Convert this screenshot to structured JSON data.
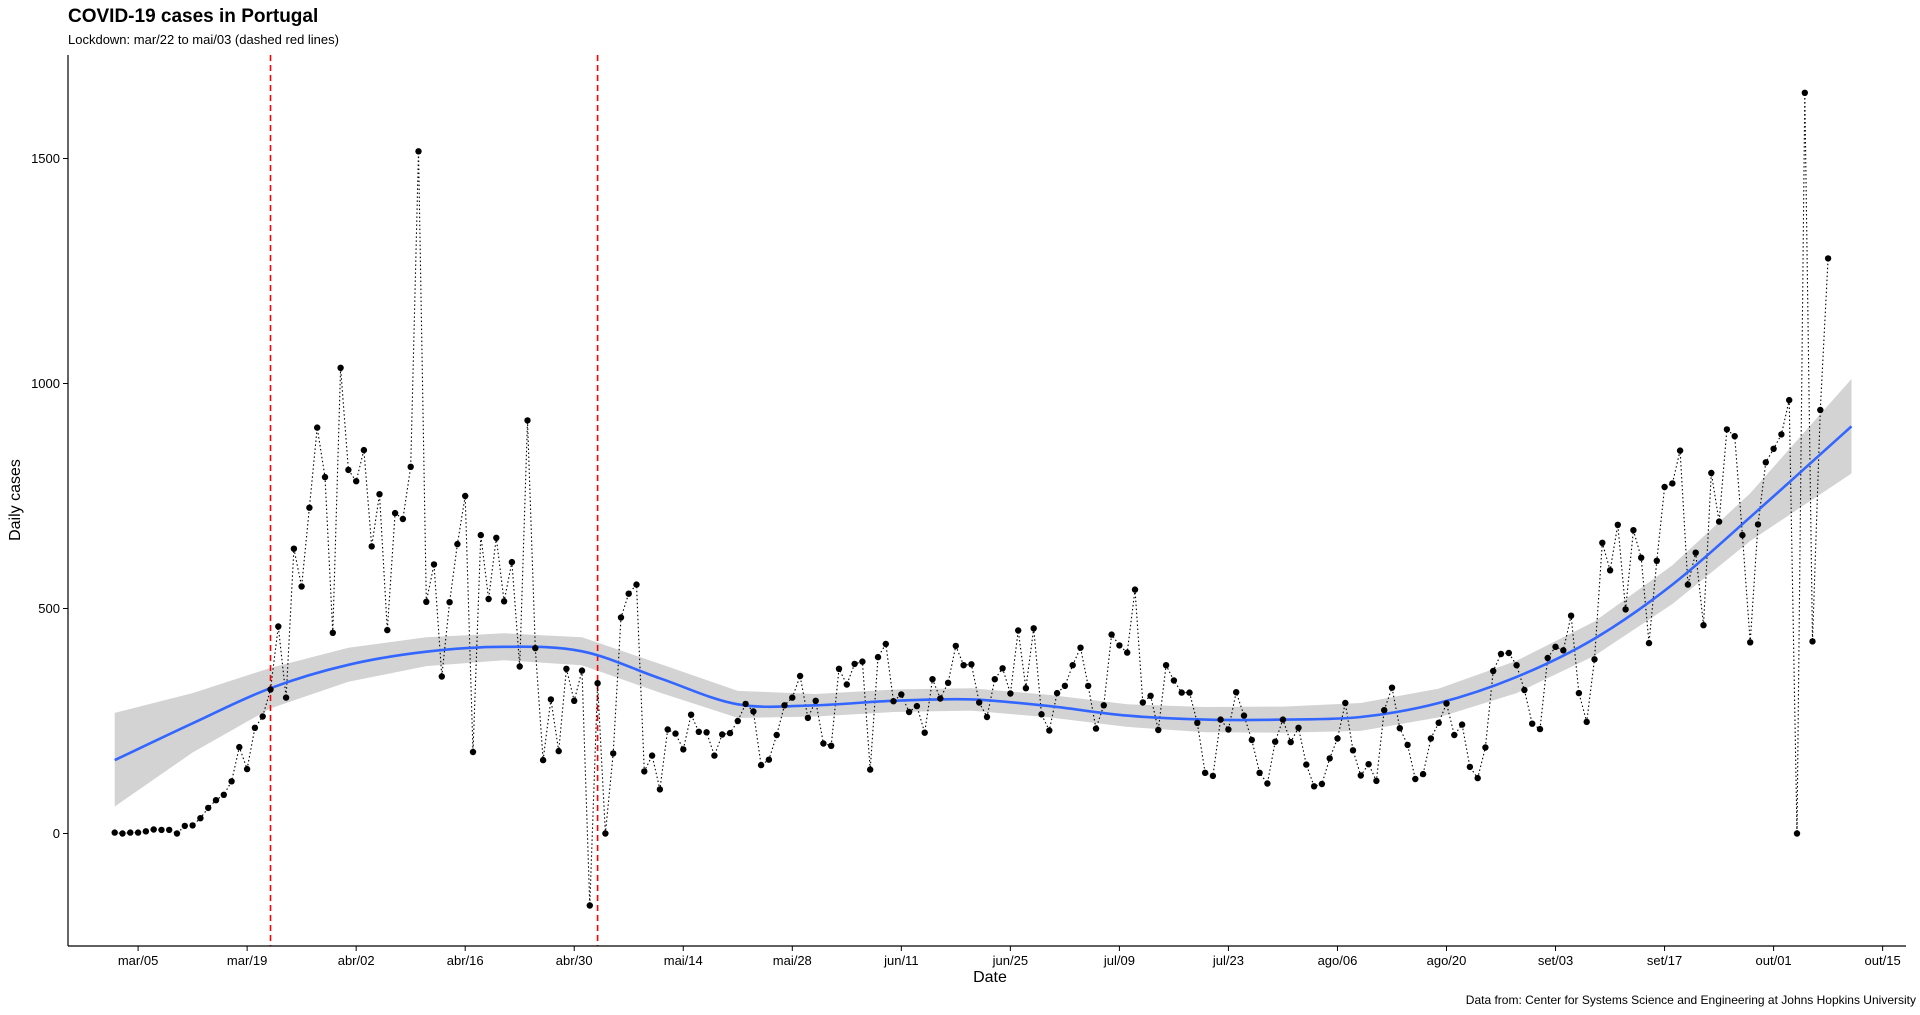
{
  "chart_data": {
    "type": "scatter",
    "title": "COVID-19 cases in Portugal",
    "subtitle": "Lockdown: mar/22 to mai/03 (dashed red lines)",
    "xlabel": "Date",
    "ylabel": "Daily cases",
    "caption": "Data from: Center for Systems Science and Engineering at Johns Hopkins University",
    "x_start": "2020-03-02",
    "x_end": "2020-10-11",
    "xlim": [
      "2020-02-25",
      "2020-10-18"
    ],
    "ylim": [
      -250,
      1730
    ],
    "x_ticks": [
      {
        "date": "2020-03-05",
        "label": "mar/05"
      },
      {
        "date": "2020-03-19",
        "label": "mar/19"
      },
      {
        "date": "2020-04-02",
        "label": "abr/02"
      },
      {
        "date": "2020-04-16",
        "label": "abr/16"
      },
      {
        "date": "2020-04-30",
        "label": "abr/30"
      },
      {
        "date": "2020-05-14",
        "label": "mai/14"
      },
      {
        "date": "2020-05-28",
        "label": "mai/28"
      },
      {
        "date": "2020-06-11",
        "label": "jun/11"
      },
      {
        "date": "2020-06-25",
        "label": "jun/25"
      },
      {
        "date": "2020-07-09",
        "label": "jul/09"
      },
      {
        "date": "2020-07-23",
        "label": "jul/23"
      },
      {
        "date": "2020-08-06",
        "label": "ago/06"
      },
      {
        "date": "2020-08-20",
        "label": "ago/20"
      },
      {
        "date": "2020-09-03",
        "label": "set/03"
      },
      {
        "date": "2020-09-17",
        "label": "set/17"
      },
      {
        "date": "2020-10-01",
        "label": "out/01"
      },
      {
        "date": "2020-10-15",
        "label": "out/15"
      }
    ],
    "y_ticks": [
      0,
      500,
      1000,
      1500
    ],
    "lockdown_lines": [
      {
        "date": "2020-03-22",
        "color": "#ff0000"
      },
      {
        "date": "2020-05-03",
        "color": "#ff0000"
      }
    ],
    "series": [
      {
        "kind": "points",
        "color": "#000000",
        "connector": "dotted",
        "values": [
          2,
          0,
          2,
          2,
          5,
          9,
          8,
          8,
          0,
          17,
          18,
          34,
          57,
          74,
          86,
          116,
          192,
          143,
          235,
          260,
          320,
          460,
          302,
          633,
          549,
          724,
          902,
          792,
          446,
          1035,
          808,
          783,
          852,
          638,
          754,
          452,
          712,
          699,
          815,
          1516,
          515,
          598,
          349,
          514,
          643,
          750,
          181,
          663,
          521,
          657,
          516,
          603,
          371,
          918,
          412,
          163,
          298,
          183,
          366,
          295,
          362,
          -160,
          334,
          0,
          178,
          480,
          533,
          553,
          138,
          173,
          98,
          231,
          222,
          187,
          264,
          226,
          225,
          173,
          220,
          223,
          250,
          288,
          271,
          152,
          164,
          219,
          285,
          302,
          350,
          257,
          295,
          200,
          195,
          366,
          331,
          377,
          382,
          142,
          392,
          421,
          294,
          309,
          270,
          283,
          224,
          343,
          300,
          335,
          417,
          374,
          376,
          291,
          259,
          343,
          367,
          311,
          451,
          323,
          456,
          265,
          229,
          312,
          328,
          374,
          413,
          328,
          233,
          285,
          442,
          418,
          402,
          542,
          291,
          306,
          230,
          374,
          340,
          313,
          313,
          246,
          135,
          128,
          253,
          231,
          314,
          262,
          208,
          135,
          111,
          204,
          253,
          203,
          235,
          153,
          105,
          110,
          167,
          211,
          290,
          185,
          129,
          154,
          117,
          274,
          324,
          234,
          197,
          121,
          132,
          211,
          246,
          289,
          219,
          242,
          148,
          123,
          191,
          361,
          399,
          401,
          374,
          319,
          244,
          232,
          390,
          415,
          407,
          484,
          312,
          248,
          387,
          646,
          585,
          686,
          498,
          674,
          613,
          423,
          606,
          770,
          778,
          851,
          553,
          624,
          463,
          801,
          693,
          898,
          883,
          663,
          425,
          687,
          825,
          855,
          887,
          963,
          0,
          1646,
          427,
          941,
          1278
        ]
      },
      {
        "kind": "smooth",
        "name": "",
        "color": "#3366ff",
        "band_color": "#d3d3d3",
        "x": [
          "2020-03-02",
          "2020-03-12",
          "2020-03-22",
          "2020-04-01",
          "2020-04-11",
          "2020-04-21",
          "2020-05-01",
          "2020-05-11",
          "2020-05-21",
          "2020-05-31",
          "2020-06-10",
          "2020-06-20",
          "2020-06-30",
          "2020-07-10",
          "2020-07-20",
          "2020-07-30",
          "2020-08-09",
          "2020-08-19",
          "2020-08-29",
          "2020-09-08",
          "2020-09-18",
          "2020-09-28",
          "2020-10-11"
        ],
        "fit": [
          163,
          245,
          323,
          375,
          404,
          415,
          405,
          345,
          287,
          285,
          295,
          298,
          283,
          262,
          253,
          253,
          259,
          290,
          348,
          433,
          553,
          703,
          905
        ],
        "lower": [
          60,
          180,
          278,
          337,
          372,
          385,
          374,
          313,
          257,
          260,
          270,
          273,
          258,
          237,
          225,
          224,
          228,
          258,
          312,
          395,
          510,
          650,
          800
        ],
        "upper": [
          268,
          312,
          368,
          413,
          436,
          445,
          436,
          377,
          317,
          310,
          320,
          323,
          308,
          287,
          281,
          282,
          290,
          322,
          384,
          471,
          596,
          756,
          1010
        ]
      }
    ]
  }
}
